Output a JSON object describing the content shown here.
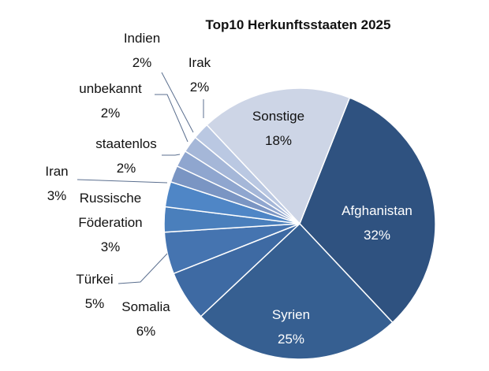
{
  "chart_data": {
    "type": "pie",
    "title": "Top10 Herkunftsstaaten 2025",
    "categories": [
      "Afghanistan",
      "Syrien",
      "Somalia",
      "Türkei",
      "Russische Föderation",
      "Iran",
      "staatenlos",
      "unbekannt",
      "Indien",
      "Irak",
      "Sonstige"
    ],
    "values": [
      32,
      25,
      6,
      5,
      3,
      3,
      2,
      2,
      2,
      2,
      18
    ],
    "value_labels": [
      "32%",
      "25%",
      "6%",
      "5%",
      "3%",
      "3%",
      "2%",
      "2%",
      "2%",
      "2%",
      "18%"
    ],
    "colors": [
      "#2f5280",
      "#365f91",
      "#3e6aa3",
      "#4574b0",
      "#4a7fbc",
      "#4f86c6",
      "#7a95c3",
      "#8fa6cf",
      "#a5b7d8",
      "#bac8e2",
      "#cdd5e6"
    ]
  }
}
